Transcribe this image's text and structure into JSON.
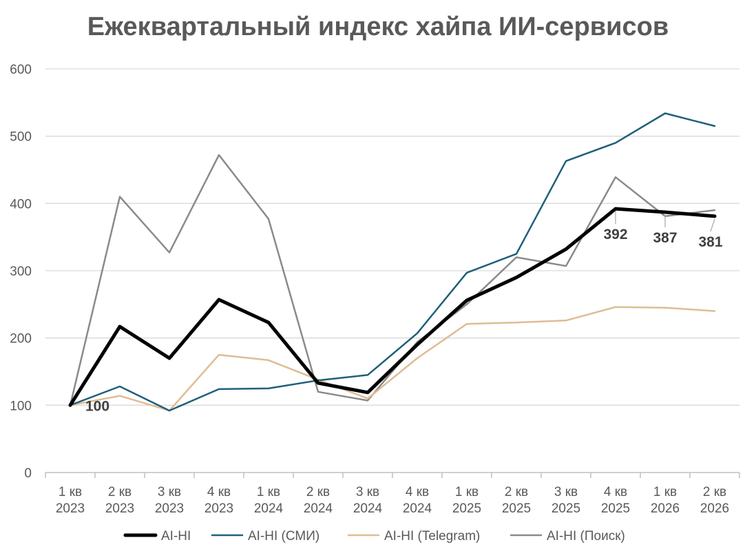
{
  "chart_data": {
    "type": "line",
    "title": "Ежеквартальный индекс хайпа ИИ-сервисов",
    "xlabel": "",
    "ylabel": "",
    "ylim": [
      0,
      600
    ],
    "yticks": [
      0,
      100,
      200,
      300,
      400,
      500,
      600
    ],
    "grid": true,
    "legend_position": "bottom",
    "categories": [
      [
        "1 кв",
        "2023"
      ],
      [
        "2 кв",
        "2023"
      ],
      [
        "3 кв",
        "2023"
      ],
      [
        "4 кв",
        "2023"
      ],
      [
        "1 кв",
        "2024"
      ],
      [
        "2 кв",
        "2024"
      ],
      [
        "3 кв",
        "2024"
      ],
      [
        "4 кв",
        "2024"
      ],
      [
        "1 кв",
        "2025"
      ],
      [
        "2 кв",
        "2025"
      ],
      [
        "3 кв",
        "2025"
      ],
      [
        "4 кв",
        "2025"
      ],
      [
        "1 кв",
        "2026"
      ],
      [
        "2 кв",
        "2026"
      ]
    ],
    "series": [
      {
        "name": "AI-HI",
        "color": "#000000",
        "width": 5,
        "values": [
          100,
          217,
          170,
          257,
          223,
          133,
          119,
          190,
          256,
          290,
          332,
          392,
          387,
          381
        ]
      },
      {
        "name": "AI-HI (СМИ)",
        "color": "#1f5f7a",
        "width": 2.5,
        "values": [
          100,
          128,
          92,
          124,
          125,
          137,
          145,
          207,
          297,
          325,
          463,
          490,
          534,
          515
        ]
      },
      {
        "name": "AI-HI (Telegram)",
        "color": "#dfbc94",
        "width": 2.5,
        "values": [
          100,
          114,
          92,
          175,
          167,
          138,
          110,
          170,
          221,
          223,
          226,
          246,
          245,
          240
        ]
      },
      {
        "name": "AI-HI (Поиск)",
        "color": "#8a8a8a",
        "width": 2.5,
        "values": [
          100,
          410,
          327,
          472,
          377,
          120,
          107,
          194,
          250,
          320,
          307,
          439,
          381,
          390
        ]
      }
    ],
    "data_labels": [
      {
        "series": 0,
        "index": 0,
        "text": "100"
      },
      {
        "series": 0,
        "index": 11,
        "text": "392"
      },
      {
        "series": 0,
        "index": 12,
        "text": "387"
      },
      {
        "series": 0,
        "index": 13,
        "text": "381"
      }
    ]
  }
}
